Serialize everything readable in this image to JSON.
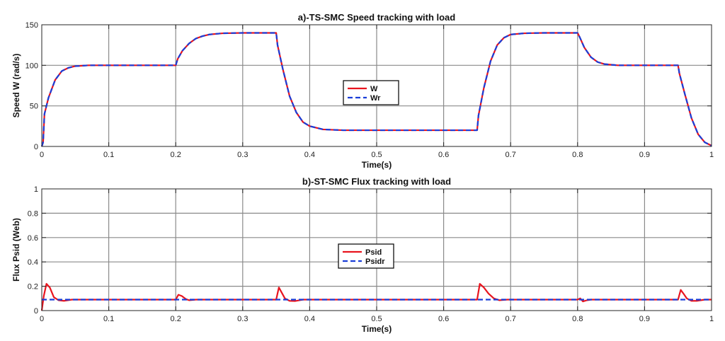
{
  "colors": {
    "series_solid": "#e8141e",
    "series_dashed": "#1a3ed8",
    "grid": "#8a8a8a",
    "axes": "#262626",
    "background": "#ffffff"
  },
  "chart_data": [
    {
      "type": "line",
      "title": "a)-TS-SMC Speed  tracking with load",
      "xlabel": "Time(s)",
      "ylabel": "Speed W (rad/s)",
      "xlim": [
        0,
        1
      ],
      "ylim": [
        0,
        150
      ],
      "xticks": [
        0,
        0.1,
        0.2,
        0.3,
        0.4,
        0.5,
        0.6,
        0.7,
        0.8,
        0.9,
        1
      ],
      "xtick_labels": [
        "0",
        "0.1",
        "0.2",
        "0.3",
        "0.4",
        "0.5",
        "0.6",
        "0.7",
        "0.8",
        "0.9",
        "1"
      ],
      "yticks": [
        0,
        50,
        100,
        150
      ],
      "ytick_labels": [
        "0",
        "50",
        "100",
        "150"
      ],
      "grid": true,
      "legend": "center",
      "series": [
        {
          "name": "W",
          "style": "solid",
          "points": [
            [
              0,
              0
            ],
            [
              0.002,
              5
            ],
            [
              0.004,
              40
            ],
            [
              0.01,
              60
            ],
            [
              0.02,
              82
            ],
            [
              0.03,
              93
            ],
            [
              0.04,
              97
            ],
            [
              0.05,
              99
            ],
            [
              0.07,
              100
            ],
            [
              0.2,
              100
            ],
            [
              0.203,
              108
            ],
            [
              0.21,
              118
            ],
            [
              0.22,
              127
            ],
            [
              0.23,
              133
            ],
            [
              0.24,
              136
            ],
            [
              0.25,
              138
            ],
            [
              0.27,
              139.5
            ],
            [
              0.3,
              140
            ],
            [
              0.35,
              140
            ],
            [
              0.352,
              125
            ],
            [
              0.36,
              95
            ],
            [
              0.37,
              62
            ],
            [
              0.38,
              42
            ],
            [
              0.39,
              30
            ],
            [
              0.4,
              25
            ],
            [
              0.42,
              21
            ],
            [
              0.45,
              20
            ],
            [
              0.65,
              20
            ],
            [
              0.652,
              38
            ],
            [
              0.66,
              72
            ],
            [
              0.67,
              105
            ],
            [
              0.68,
              125
            ],
            [
              0.69,
              134
            ],
            [
              0.7,
              138
            ],
            [
              0.72,
              139.5
            ],
            [
              0.75,
              140
            ],
            [
              0.8,
              140
            ],
            [
              0.803,
              135
            ],
            [
              0.81,
              122
            ],
            [
              0.82,
              110
            ],
            [
              0.83,
              104
            ],
            [
              0.84,
              101.5
            ],
            [
              0.86,
              100
            ],
            [
              0.95,
              100
            ],
            [
              0.952,
              90
            ],
            [
              0.96,
              65
            ],
            [
              0.97,
              35
            ],
            [
              0.98,
              15
            ],
            [
              0.99,
              5
            ],
            [
              1,
              1
            ]
          ]
        },
        {
          "name": "Wr",
          "style": "dashed",
          "points": [
            [
              0,
              0
            ],
            [
              0.002,
              5
            ],
            [
              0.004,
              40
            ],
            [
              0.01,
              60
            ],
            [
              0.02,
              82
            ],
            [
              0.03,
              93
            ],
            [
              0.04,
              97
            ],
            [
              0.05,
              99
            ],
            [
              0.07,
              100
            ],
            [
              0.2,
              100
            ],
            [
              0.203,
              108
            ],
            [
              0.21,
              118
            ],
            [
              0.22,
              127
            ],
            [
              0.23,
              133
            ],
            [
              0.24,
              136
            ],
            [
              0.25,
              138
            ],
            [
              0.27,
              139.5
            ],
            [
              0.3,
              140
            ],
            [
              0.35,
              140
            ],
            [
              0.352,
              125
            ],
            [
              0.36,
              95
            ],
            [
              0.37,
              62
            ],
            [
              0.38,
              42
            ],
            [
              0.39,
              30
            ],
            [
              0.4,
              25
            ],
            [
              0.42,
              21
            ],
            [
              0.45,
              20
            ],
            [
              0.65,
              20
            ],
            [
              0.652,
              38
            ],
            [
              0.66,
              72
            ],
            [
              0.67,
              105
            ],
            [
              0.68,
              125
            ],
            [
              0.69,
              134
            ],
            [
              0.7,
              138
            ],
            [
              0.72,
              139.5
            ],
            [
              0.75,
              140
            ],
            [
              0.8,
              140
            ],
            [
              0.803,
              135
            ],
            [
              0.81,
              122
            ],
            [
              0.82,
              110
            ],
            [
              0.83,
              104
            ],
            [
              0.84,
              101.5
            ],
            [
              0.86,
              100
            ],
            [
              0.95,
              100
            ],
            [
              0.952,
              90
            ],
            [
              0.96,
              65
            ],
            [
              0.97,
              35
            ],
            [
              0.98,
              15
            ],
            [
              0.99,
              5
            ],
            [
              1,
              1
            ]
          ]
        }
      ]
    },
    {
      "type": "line",
      "title": "b)-ST-SMC Flux tracking with load",
      "xlabel": "Time(s)",
      "ylabel": "Flux Psid (Web)",
      "xlim": [
        0,
        1
      ],
      "ylim": [
        0,
        1
      ],
      "xticks": [
        0,
        0.1,
        0.2,
        0.3,
        0.4,
        0.5,
        0.6,
        0.7,
        0.8,
        0.9,
        1
      ],
      "xtick_labels": [
        "0",
        "0.1",
        "0.2",
        "0.3",
        "0.4",
        "0.5",
        "0.6",
        "0.7",
        "0.8",
        "0.9",
        "1"
      ],
      "yticks": [
        0,
        0.2,
        0.4,
        0.6,
        0.8,
        1
      ],
      "ytick_labels": [
        "0",
        "0.2",
        "0.4",
        "0.6",
        "0.8",
        "1"
      ],
      "grid": true,
      "legend": "center",
      "series": [
        {
          "name": "Psid",
          "style": "solid",
          "points": [
            [
              0,
              0
            ],
            [
              0.003,
              0.12
            ],
            [
              0.007,
              0.22
            ],
            [
              0.012,
              0.19
            ],
            [
              0.018,
              0.11
            ],
            [
              0.025,
              0.085
            ],
            [
              0.033,
              0.08
            ],
            [
              0.045,
              0.09
            ],
            [
              0.2,
              0.09
            ],
            [
              0.204,
              0.13
            ],
            [
              0.209,
              0.12
            ],
            [
              0.215,
              0.095
            ],
            [
              0.22,
              0.085
            ],
            [
              0.23,
              0.09
            ],
            [
              0.35,
              0.09
            ],
            [
              0.354,
              0.19
            ],
            [
              0.358,
              0.15
            ],
            [
              0.363,
              0.1
            ],
            [
              0.37,
              0.08
            ],
            [
              0.378,
              0.078
            ],
            [
              0.39,
              0.09
            ],
            [
              0.65,
              0.09
            ],
            [
              0.654,
              0.22
            ],
            [
              0.66,
              0.19
            ],
            [
              0.667,
              0.14
            ],
            [
              0.675,
              0.1
            ],
            [
              0.683,
              0.085
            ],
            [
              0.695,
              0.09
            ],
            [
              0.8,
              0.09
            ],
            [
              0.804,
              0.1
            ],
            [
              0.808,
              0.075
            ],
            [
              0.814,
              0.085
            ],
            [
              0.82,
              0.09
            ],
            [
              0.95,
              0.09
            ],
            [
              0.954,
              0.17
            ],
            [
              0.958,
              0.14
            ],
            [
              0.963,
              0.1
            ],
            [
              0.97,
              0.08
            ],
            [
              0.978,
              0.08
            ],
            [
              0.99,
              0.09
            ],
            [
              1,
              0.09
            ]
          ]
        },
        {
          "name": "Psidr",
          "style": "dashed",
          "points": [
            [
              0,
              0.09
            ],
            [
              1,
              0.09
            ]
          ]
        }
      ]
    }
  ]
}
